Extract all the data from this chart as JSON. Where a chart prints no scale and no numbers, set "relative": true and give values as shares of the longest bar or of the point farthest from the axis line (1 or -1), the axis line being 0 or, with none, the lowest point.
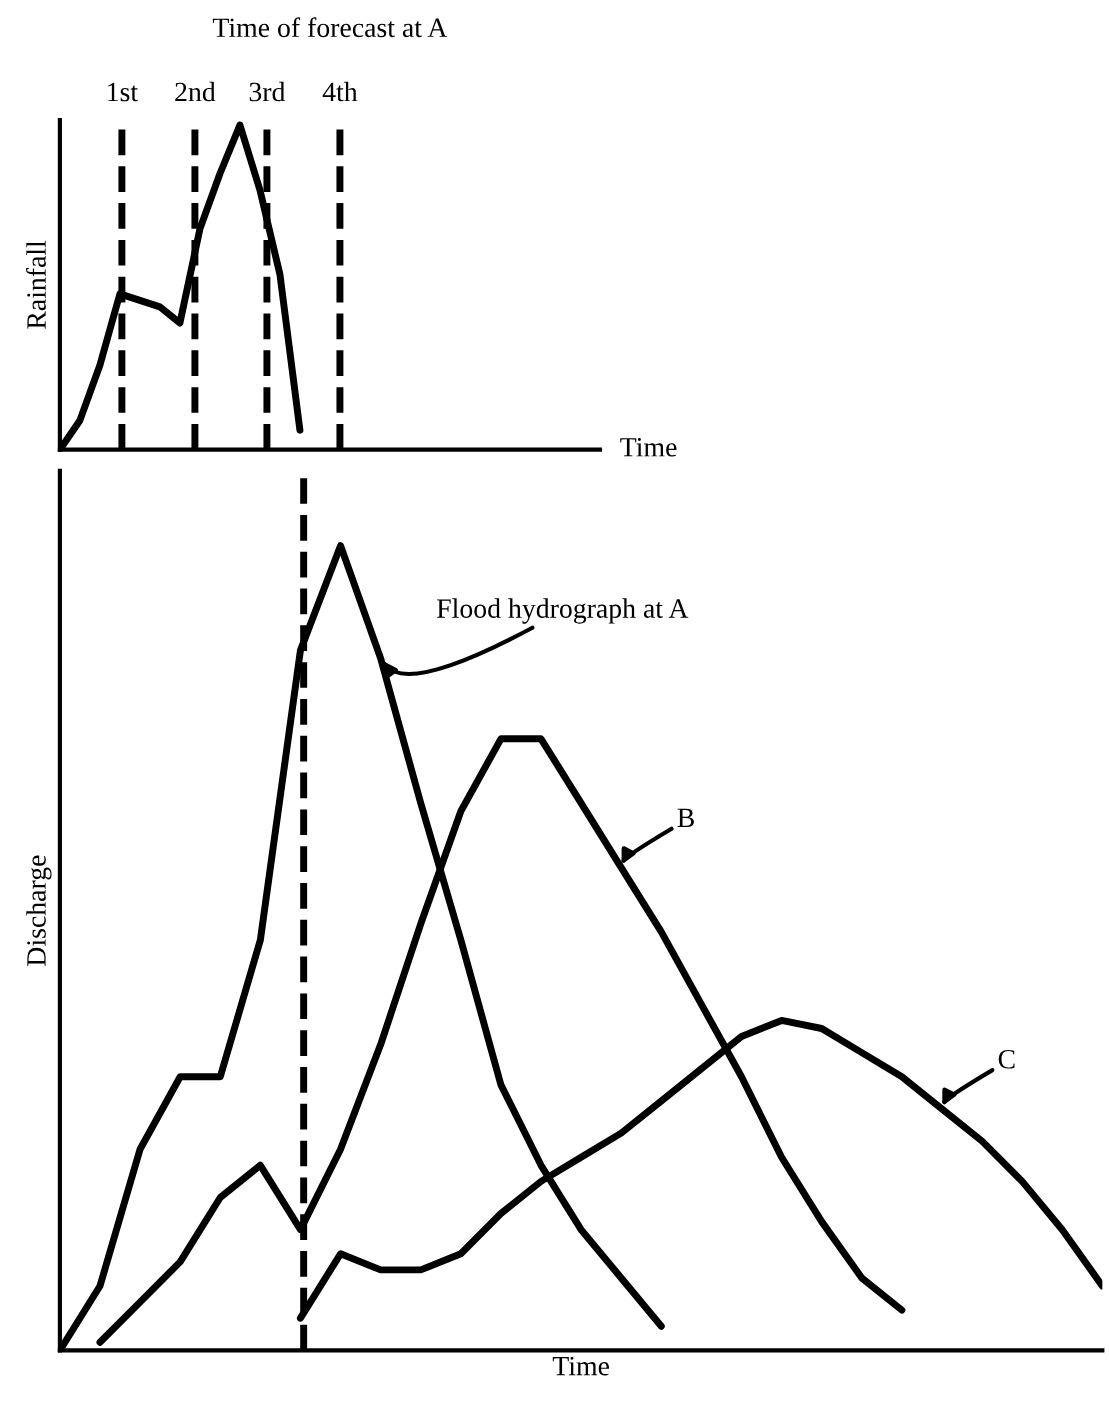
{
  "chart_data": [
    {
      "type": "line",
      "title": "Time of forecast at A",
      "xlabel": "Time",
      "ylabel": "Rainfall",
      "relative": true,
      "tick_labels": false,
      "line_style": "solid",
      "marker": "none",
      "categories": [
        null,
        null,
        null,
        null,
        null,
        null,
        null,
        null,
        null,
        null,
        null,
        null,
        null,
        null,
        null,
        null,
        null,
        null,
        null,
        null,
        null,
        null,
        null,
        null,
        null,
        null,
        null,
        null
      ],
      "series": [
        {
          "color": "#000000",
          "values": [
            0,
            0.09,
            0.26,
            0.48,
            0.46,
            0.44,
            0.39,
            0.68,
            0.85,
            1,
            0.8,
            0.54,
            0.06,
            null,
            null,
            null,
            null,
            null,
            null,
            null,
            null,
            null,
            null,
            null,
            null,
            null,
            null,
            null
          ]
        }
      ],
      "annotations": [
        "1st",
        "2nd",
        "3rd",
        "4th"
      ]
    },
    {
      "type": "line",
      "xlabel": "Time",
      "ylabel": "Discharge",
      "relative": true,
      "tick_labels": false,
      "line_style": "solid",
      "marker": "none",
      "categories": [
        null,
        null,
        null,
        null,
        null,
        null,
        null,
        null,
        null,
        null,
        null,
        null,
        null,
        null,
        null,
        null,
        null,
        null,
        null,
        null,
        null,
        null,
        null,
        null,
        null,
        null,
        null
      ],
      "series": [
        {
          "color": "#000000",
          "values": [
            0,
            0.08,
            0.25,
            0.34,
            0.34,
            0.51,
            0.87,
            1,
            0.86,
            0.68,
            0.51,
            0.33,
            0.23,
            0.15,
            0.09,
            0.03,
            null,
            null,
            null,
            null,
            null,
            null,
            null,
            null,
            null,
            null,
            null
          ]
        },
        {
          "color": "#000000",
          "values": [
            null,
            0.01,
            0.06,
            0.11,
            0.19,
            0.23,
            0.15,
            0.25,
            0.38,
            0.53,
            0.67,
            0.76,
            0.76,
            0.68,
            0.6,
            0.52,
            0.43,
            0.34,
            0.24,
            0.16,
            0.09,
            0.05,
            null,
            null,
            null,
            null,
            null
          ]
        },
        {
          "color": "#000000",
          "values": [
            null,
            null,
            null,
            null,
            null,
            null,
            0.04,
            0.12,
            0.1,
            0.1,
            0.12,
            0.17,
            0.21,
            0.24,
            0.27,
            0.31,
            0.35,
            0.39,
            0.41,
            0.4,
            0.37,
            0.34,
            0.3,
            0.26,
            0.21,
            0.15,
            0.08
          ]
        }
      ],
      "annotations": [
        "Flood hydrograph at A",
        "B",
        "C"
      ]
    }
  ]
}
